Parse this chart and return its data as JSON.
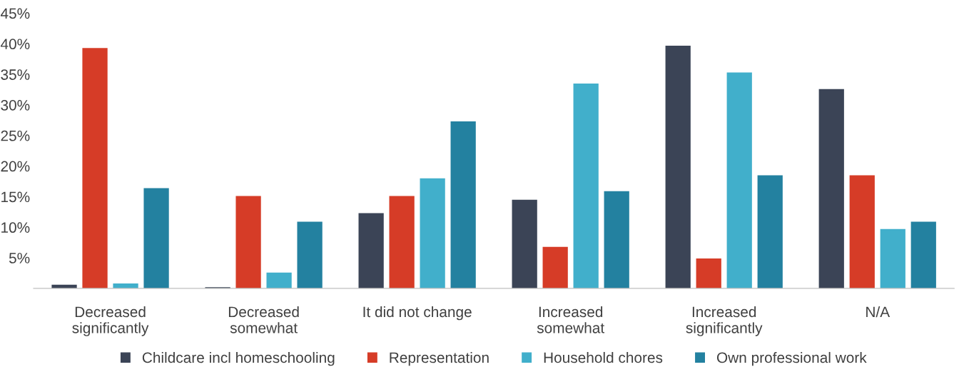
{
  "chart_data": {
    "type": "bar",
    "categories": [
      "Decreased\nsignificantly",
      "Decreased\nsomewhat",
      "It did not change",
      "Increased\nsomewhat",
      "Increased\nsignificantly",
      "N/A"
    ],
    "series": [
      {
        "name": "Childcare incl homeschooling",
        "color": "#3b4456",
        "values": [
          0.6,
          0.2,
          12.3,
          14.5,
          39.7,
          32.6
        ]
      },
      {
        "name": "Representation",
        "color": "#d63c27",
        "values": [
          39.3,
          15.1,
          15.1,
          6.8,
          4.9,
          18.5
        ]
      },
      {
        "name": "Household chores",
        "color": "#41afcb",
        "values": [
          0.8,
          2.6,
          18.0,
          33.5,
          35.3,
          9.7
        ]
      },
      {
        "name": "Own professional work",
        "color": "#2381a0",
        "values": [
          16.4,
          10.9,
          27.3,
          15.9,
          18.5,
          10.9
        ]
      }
    ],
    "ylim": [
      0,
      45
    ],
    "yticks": [
      {
        "value": 5,
        "label": "5%"
      },
      {
        "value": 10,
        "label": "10%"
      },
      {
        "value": 15,
        "label": "15%"
      },
      {
        "value": 20,
        "label": "20%"
      },
      {
        "value": 25,
        "label": "25%"
      },
      {
        "value": 30,
        "label": "30%"
      },
      {
        "value": 35,
        "label": "35%"
      },
      {
        "value": 40,
        "label": "40%"
      },
      {
        "value": 45,
        "label": "45%"
      }
    ],
    "legend": "bottom"
  }
}
